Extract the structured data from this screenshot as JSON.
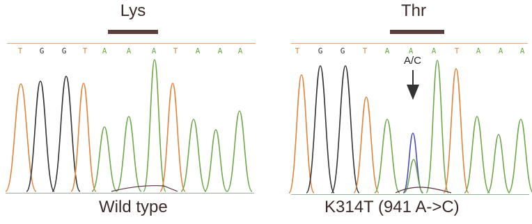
{
  "panels": [
    {
      "id": "wild-type",
      "codon_label": "Lys",
      "base_calls": [
        "T",
        "G",
        "G",
        "T",
        "A",
        "A",
        "A",
        "T",
        "A",
        "A",
        "A"
      ],
      "caption": "Wild type"
    },
    {
      "id": "mutant",
      "codon_label": "Thr",
      "base_calls": [
        "T",
        "G",
        "G",
        "T",
        "A",
        "A",
        "A",
        "T",
        "A",
        "A",
        "A"
      ],
      "caption": "K314T (941 A->C)",
      "mutation_label": "A/C"
    }
  ],
  "colors": {
    "A": "#6fa84a",
    "G": "#333333",
    "T": "#e2843c",
    "C": "#4a4ab8",
    "codon_bar": "#5a3d3d"
  }
}
